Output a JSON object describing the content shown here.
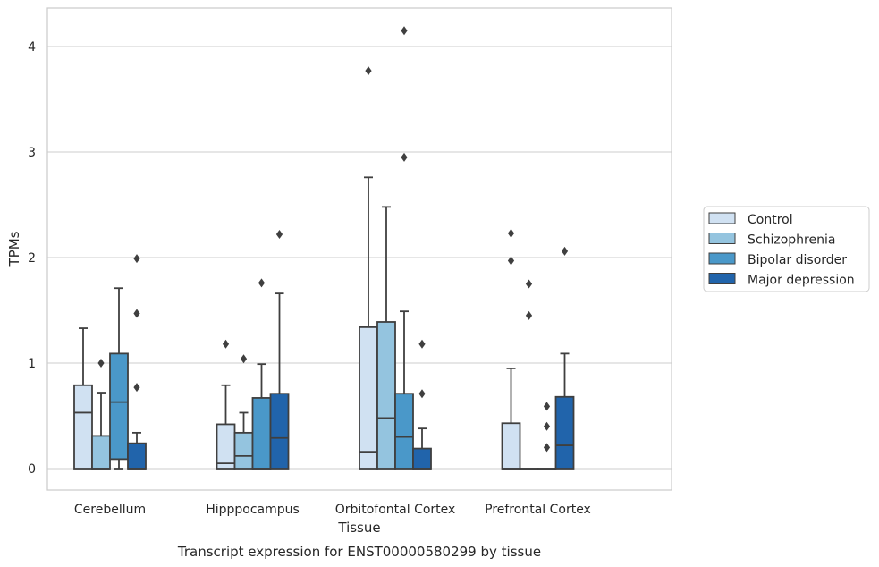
{
  "chart_data": {
    "type": "boxplot",
    "title": "Transcript expression for ENST00000580299 by tissue",
    "xlabel": "Tissue",
    "ylabel": "TPMs",
    "ylim": [
      -0.2,
      4.35
    ],
    "yticks": [
      0,
      1,
      2,
      3,
      4
    ],
    "grid": "horizontal",
    "legend_position": "right",
    "categories": [
      "Cerebellum",
      "Hipppocampus",
      "Orbitofontal Cortex",
      "Prefrontal Cortex"
    ],
    "series": [
      {
        "name": "Control",
        "color": "#d0e1f2",
        "boxes": [
          {
            "whislo": 0,
            "q1": 0,
            "med": 0.53,
            "q3": 0.79,
            "whishi": 1.33,
            "fliers": []
          },
          {
            "whislo": 0,
            "q1": 0,
            "med": 0.05,
            "q3": 0.42,
            "whishi": 0.79,
            "fliers": [
              1.18
            ]
          },
          {
            "whislo": 0,
            "q1": 0,
            "med": 0.16,
            "q3": 1.34,
            "whishi": 2.76,
            "fliers": [
              3.77
            ]
          },
          {
            "whislo": 0,
            "q1": 0,
            "med": 0,
            "q3": 0.43,
            "whishi": 0.95,
            "fliers": [
              1.97,
              2.23
            ]
          }
        ]
      },
      {
        "name": "Schizophrenia",
        "color": "#94c4df",
        "boxes": [
          {
            "whislo": 0,
            "q1": 0,
            "med": 0,
            "q3": 0.31,
            "whishi": 0.72,
            "fliers": [
              1.0
            ]
          },
          {
            "whislo": 0,
            "q1": 0,
            "med": 0.12,
            "q3": 0.34,
            "whishi": 0.53,
            "fliers": [
              1.04
            ]
          },
          {
            "whislo": 0,
            "q1": 0,
            "med": 0.48,
            "q3": 1.39,
            "whishi": 2.48,
            "fliers": []
          },
          {
            "whislo": 0,
            "q1": 0,
            "med": 0,
            "q3": 0,
            "whishi": 0,
            "fliers": [
              1.45,
              1.75
            ]
          }
        ]
      },
      {
        "name": "Bipolar disorder",
        "color": "#4a98c9",
        "boxes": [
          {
            "whislo": 0,
            "q1": 0.09,
            "med": 0.63,
            "q3": 1.09,
            "whishi": 1.71,
            "fliers": []
          },
          {
            "whislo": 0,
            "q1": 0,
            "med": 0,
            "q3": 0.67,
            "whishi": 0.99,
            "fliers": [
              1.76
            ]
          },
          {
            "whislo": 0,
            "q1": 0,
            "med": 0.3,
            "q3": 0.71,
            "whishi": 1.49,
            "fliers": [
              2.95,
              4.15
            ]
          },
          {
            "whislo": 0,
            "q1": 0,
            "med": 0,
            "q3": 0,
            "whishi": 0,
            "fliers": [
              0.2,
              0.4,
              0.59
            ]
          }
        ]
      },
      {
        "name": "Major depression",
        "color": "#2164ab",
        "boxes": [
          {
            "whislo": 0,
            "q1": 0,
            "med": 0,
            "q3": 0.24,
            "whishi": 0.34,
            "fliers": [
              0.77,
              1.47,
              1.99
            ]
          },
          {
            "whislo": 0,
            "q1": 0,
            "med": 0.29,
            "q3": 0.71,
            "whishi": 1.66,
            "fliers": [
              2.22
            ]
          },
          {
            "whislo": 0,
            "q1": 0,
            "med": 0,
            "q3": 0.19,
            "whishi": 0.38,
            "fliers": [
              0.71,
              1.18
            ]
          },
          {
            "whislo": 0,
            "q1": 0,
            "med": 0.22,
            "q3": 0.68,
            "whishi": 1.09,
            "fliers": [
              2.06
            ]
          }
        ]
      }
    ]
  }
}
